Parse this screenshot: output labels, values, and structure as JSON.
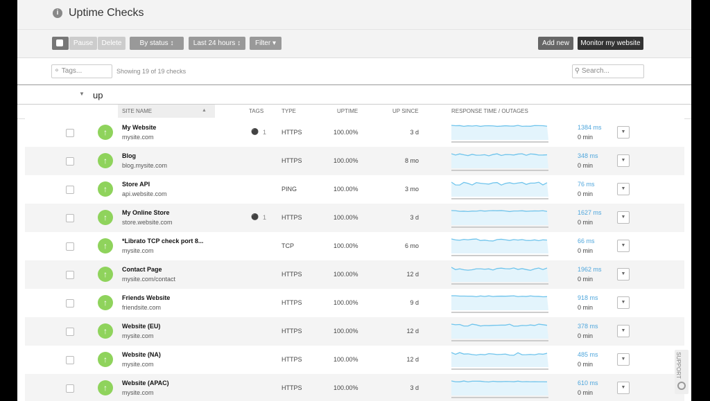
{
  "header": {
    "title": "Uptime Checks"
  },
  "toolbar": {
    "pause": "Pause",
    "delete": "Delete",
    "by_status": "By status",
    "time_range": "Last 24 hours",
    "filter": "Filter",
    "add_new": "Add new",
    "monitor": "Monitor my website"
  },
  "filters": {
    "tags_placeholder": "Tags...",
    "showing": "Showing 19 of 19 checks",
    "search_placeholder": "Search..."
  },
  "group": "up",
  "columns": {
    "site_name": "SITE NAME",
    "tags": "TAGS",
    "type": "TYPE",
    "uptime": "UPTIME",
    "up_since": "UP SINCE",
    "response": "RESPONSE TIME / OUTAGES"
  },
  "rows": [
    {
      "name": "My Website",
      "url": "mysite.com",
      "tags": "1",
      "type": "HTTPS",
      "uptime": "100.00%",
      "up_since": "3 d",
      "response": "1384 ms",
      "outage": "0 min"
    },
    {
      "name": "Blog",
      "url": "blog.mysite.com",
      "type": "HTTPS",
      "uptime": "100.00%",
      "up_since": "8 mo",
      "response": "348 ms",
      "outage": "0 min"
    },
    {
      "name": "Store API",
      "url": "api.website.com",
      "type": "PING",
      "uptime": "100.00%",
      "up_since": "3 mo",
      "response": "76 ms",
      "outage": "0 min"
    },
    {
      "name": "My Online Store",
      "url": "store.website.com",
      "tags": "1",
      "type": "HTTPS",
      "uptime": "100.00%",
      "up_since": "3 d",
      "response": "1627 ms",
      "outage": "0 min"
    },
    {
      "name": "*Librato TCP check port 8...",
      "url": "mysite.com",
      "type": "TCP",
      "uptime": "100.00%",
      "up_since": "6 mo",
      "response": "66 ms",
      "outage": "0 min"
    },
    {
      "name": "Contact Page",
      "url": "mysite.com/contact",
      "type": "HTTPS",
      "uptime": "100.00%",
      "up_since": "12 d",
      "response": "1962 ms",
      "outage": "0 min"
    },
    {
      "name": "Friends Website",
      "url": "friendsite.com",
      "type": "HTTPS",
      "uptime": "100.00%",
      "up_since": "9 d",
      "response": "918 ms",
      "outage": "0 min"
    },
    {
      "name": "Website (EU)",
      "url": "mysite.com",
      "type": "HTTPS",
      "uptime": "100.00%",
      "up_since": "12 d",
      "response": "378 ms",
      "outage": "0 min"
    },
    {
      "name": "Website (NA)",
      "url": "mysite.com",
      "type": "HTTPS",
      "uptime": "100.00%",
      "up_since": "12 d",
      "response": "485 ms",
      "outage": "0 min"
    },
    {
      "name": "Website (APAC)",
      "url": "mysite.com",
      "type": "HTTPS",
      "uptime": "100.00%",
      "up_since": "3 d",
      "response": "610 ms",
      "outage": "0 min"
    }
  ],
  "support": "SUPPORT"
}
